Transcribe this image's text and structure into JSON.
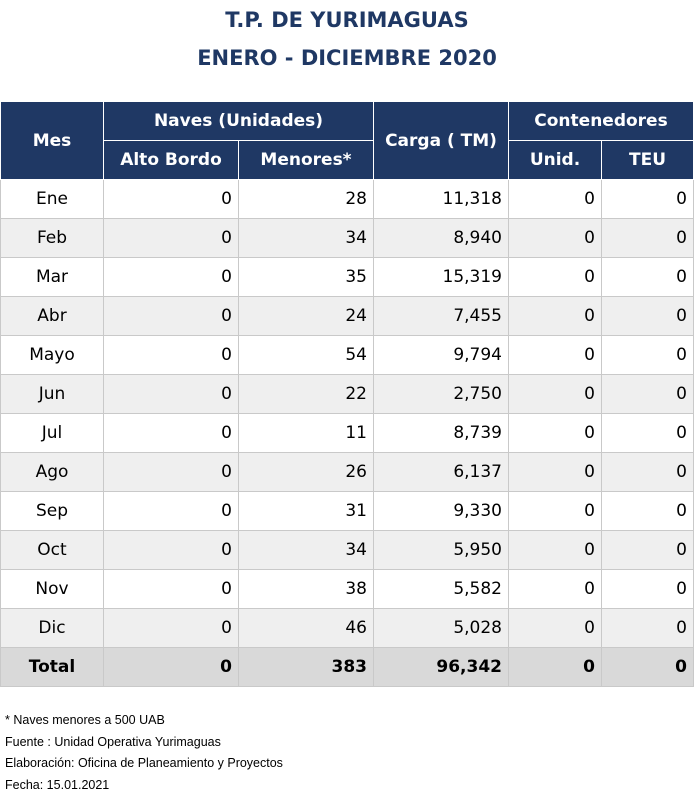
{
  "title_line1": "T.P. DE YURIMAGUAS",
  "title_line2": "ENERO - DICIEMBRE 2020",
  "headers": {
    "mes": "Mes",
    "naves": "Naves (Unidades)",
    "alto_bordo": "Alto Bordo",
    "menores": "Menores*",
    "carga": "Carga ( TM)",
    "contenedores": "Contenedores",
    "unid": "Unid.",
    "teu": "TEU"
  },
  "rows": [
    {
      "mes": "Ene",
      "alto": "0",
      "menores": "28",
      "carga": "11,318",
      "unid": "0",
      "teu": "0"
    },
    {
      "mes": "Feb",
      "alto": "0",
      "menores": "34",
      "carga": "8,940",
      "unid": "0",
      "teu": "0"
    },
    {
      "mes": "Mar",
      "alto": "0",
      "menores": "35",
      "carga": "15,319",
      "unid": "0",
      "teu": "0"
    },
    {
      "mes": "Abr",
      "alto": "0",
      "menores": "24",
      "carga": "7,455",
      "unid": "0",
      "teu": "0"
    },
    {
      "mes": "Mayo",
      "alto": "0",
      "menores": "54",
      "carga": "9,794",
      "unid": "0",
      "teu": "0"
    },
    {
      "mes": "Jun",
      "alto": "0",
      "menores": "22",
      "carga": "2,750",
      "unid": "0",
      "teu": "0"
    },
    {
      "mes": "Jul",
      "alto": "0",
      "menores": "11",
      "carga": "8,739",
      "unid": "0",
      "teu": "0"
    },
    {
      "mes": "Ago",
      "alto": "0",
      "menores": "26",
      "carga": "6,137",
      "unid": "0",
      "teu": "0"
    },
    {
      "mes": "Sep",
      "alto": "0",
      "menores": "31",
      "carga": "9,330",
      "unid": "0",
      "teu": "0"
    },
    {
      "mes": "Oct",
      "alto": "0",
      "menores": "34",
      "carga": "5,950",
      "unid": "0",
      "teu": "0"
    },
    {
      "mes": "Nov",
      "alto": "0",
      "menores": "38",
      "carga": "5,582",
      "unid": "0",
      "teu": "0"
    },
    {
      "mes": "Dic",
      "alto": "0",
      "menores": "46",
      "carga": "5,028",
      "unid": "0",
      "teu": "0"
    }
  ],
  "total": {
    "mes": "Total",
    "alto": "0",
    "menores": "383",
    "carga": "96,342",
    "unid": "0",
    "teu": "0"
  },
  "notes": [
    "* Naves menores a 500 UAB",
    "Fuente : Unidad Operativa Yurimaguas",
    "Elaboración: Oficina de Planeamiento y Proyectos",
    "Fecha: 15.01.2021"
  ],
  "colors": {
    "header_bg": "#1f3864",
    "title": "#1f3864",
    "alt_row": "#efefef",
    "total_row": "#d9d9d9"
  }
}
